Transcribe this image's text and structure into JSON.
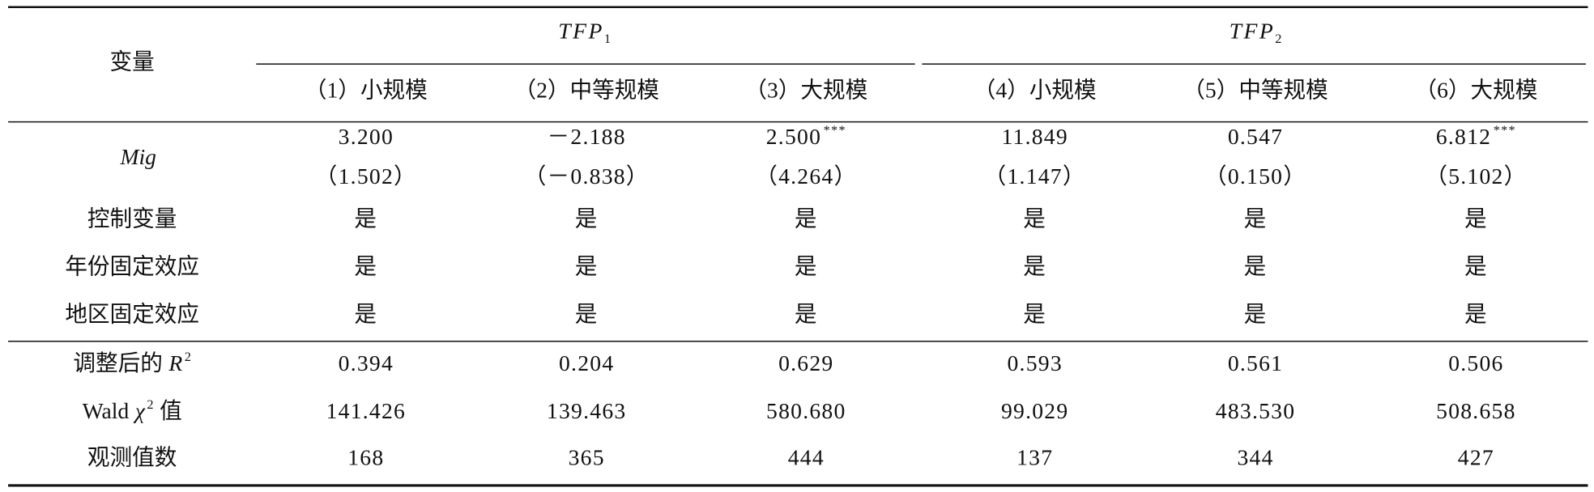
{
  "header": {
    "variable": "变量",
    "groups": [
      {
        "main": "TFP",
        "sub": "1"
      },
      {
        "main": "TFP",
        "sub": "2"
      }
    ],
    "columns": [
      "（1）小规模",
      "（2）中等规模",
      "（3）大规模",
      "（4）小规模",
      "（5）中等规模",
      "（6）大规模"
    ]
  },
  "rows": [
    {
      "label": [
        {
          "t": "Mig",
          "style": "italic"
        }
      ],
      "cells": [
        {
          "value": "3.200"
        },
        {
          "value": "－2.188"
        },
        {
          "value": "2.500",
          "stars": "***"
        },
        {
          "value": "11.849"
        },
        {
          "value": "0.547"
        },
        {
          "value": "6.812",
          "stars": "***"
        }
      ],
      "t_values": [
        "（1.502）",
        "（－0.838）",
        "（4.264）",
        "（1.147）",
        "（0.150）",
        "（5.102）"
      ]
    },
    {
      "label": [
        {
          "t": "控制变量"
        }
      ],
      "cells": [
        {
          "value": "是"
        },
        {
          "value": "是"
        },
        {
          "value": "是"
        },
        {
          "value": "是"
        },
        {
          "value": "是"
        },
        {
          "value": "是"
        }
      ]
    },
    {
      "label": [
        {
          "t": "年份固定效应"
        }
      ],
      "cells": [
        {
          "value": "是"
        },
        {
          "value": "是"
        },
        {
          "value": "是"
        },
        {
          "value": "是"
        },
        {
          "value": "是"
        },
        {
          "value": "是"
        }
      ]
    },
    {
      "label": [
        {
          "t": "地区固定效应"
        }
      ],
      "cells": [
        {
          "value": "是"
        },
        {
          "value": "是"
        },
        {
          "value": "是"
        },
        {
          "value": "是"
        },
        {
          "value": "是"
        },
        {
          "value": "是"
        }
      ]
    },
    {
      "label": [
        {
          "t": "调整后的"
        },
        {
          "t": "R",
          "style": "italic"
        },
        {
          "t": "2",
          "style": "sup"
        }
      ],
      "cells": [
        {
          "value": "0.394"
        },
        {
          "value": "0.204"
        },
        {
          "value": "0.629"
        },
        {
          "value": "0.593"
        },
        {
          "value": "0.561"
        },
        {
          "value": "0.506"
        }
      ]
    },
    {
      "label": [
        {
          "t": "Wald"
        },
        {
          "t": "χ",
          "style": "italic"
        },
        {
          "t": "2",
          "style": "sup"
        },
        {
          "t": "值"
        }
      ],
      "cells": [
        {
          "value": "141.426"
        },
        {
          "value": "139.463"
        },
        {
          "value": "580.680"
        },
        {
          "value": "99.029"
        },
        {
          "value": "483.530"
        },
        {
          "value": "508.658"
        }
      ]
    },
    {
      "label": [
        {
          "t": "观测值数"
        }
      ],
      "cells": [
        {
          "value": "168"
        },
        {
          "value": "365"
        },
        {
          "value": "444"
        },
        {
          "value": "137"
        },
        {
          "value": "344"
        },
        {
          "value": "427"
        }
      ]
    }
  ]
}
